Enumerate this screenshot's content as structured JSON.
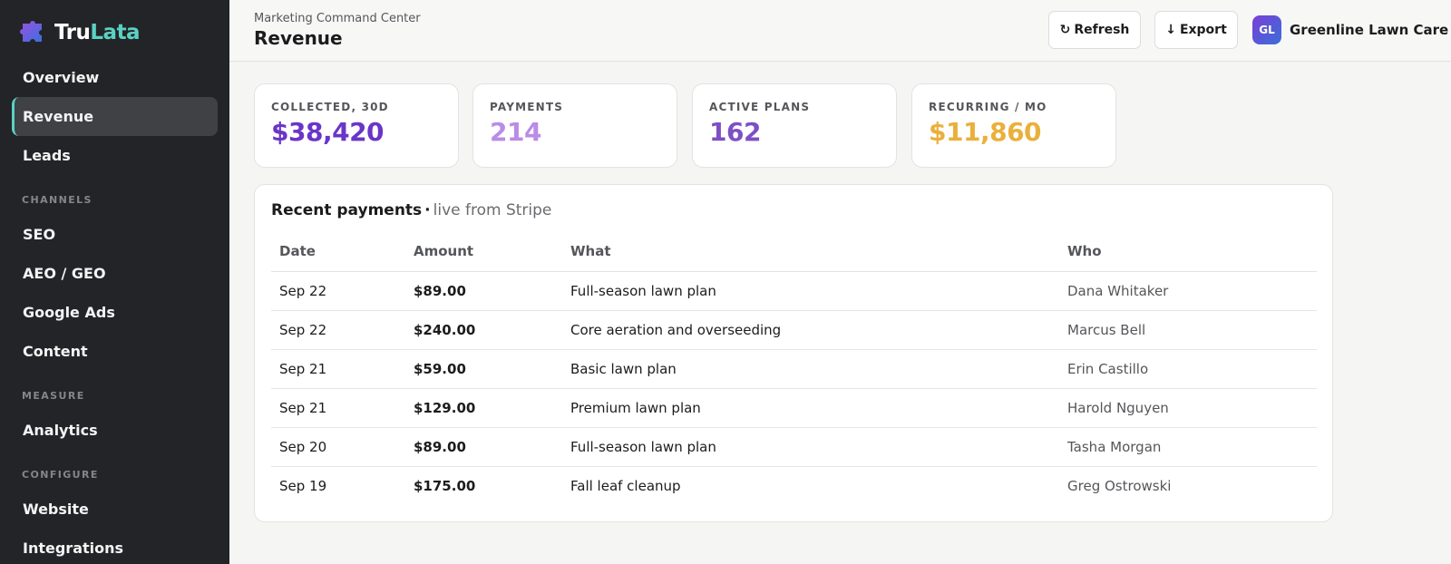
{
  "brand": {
    "name_part1": "Tru",
    "name_part2": "Lata",
    "logo_icon": "puzzle-logo"
  },
  "nav": {
    "items_top": [
      {
        "label": "Overview",
        "active": false
      },
      {
        "label": "Revenue",
        "active": true
      },
      {
        "label": "Leads",
        "active": false
      }
    ],
    "sections": [
      {
        "title": "CHANNELS",
        "items": [
          {
            "label": "SEO"
          },
          {
            "label": "AEO / GEO"
          },
          {
            "label": "Google Ads"
          },
          {
            "label": "Content"
          }
        ]
      },
      {
        "title": "MEASURE",
        "items": [
          {
            "label": "Analytics"
          }
        ]
      },
      {
        "title": "CONFIGURE",
        "items": [
          {
            "label": "Website"
          },
          {
            "label": "Integrations"
          }
        ]
      }
    ]
  },
  "header": {
    "breadcrumb": "Marketing Command Center",
    "title": "Revenue",
    "refresh_label": "Refresh",
    "refresh_icon": "refresh-icon",
    "export_label": "Export",
    "export_icon": "arrow-down-icon",
    "account": {
      "initials": "GL",
      "name": "Greenline Lawn Care"
    }
  },
  "kpis": [
    {
      "label": "COLLECTED, 30D",
      "value": "$38,420",
      "color": "#6a35c8"
    },
    {
      "label": "PAYMENTS",
      "value": "214",
      "color": "#b98ce6"
    },
    {
      "label": "ACTIVE PLANS",
      "value": "162",
      "color": "#7d4fc4"
    },
    {
      "label": "RECURRING / MO",
      "value": "$11,860",
      "color": "#eab03c"
    }
  ],
  "payments": {
    "title": "Recent payments",
    "separator": "·",
    "subtitle": "live from Stripe",
    "columns": [
      "Date",
      "Amount",
      "What",
      "Who"
    ],
    "rows": [
      {
        "date": "Sep 22",
        "amount": "$89.00",
        "what": "Full-season lawn plan",
        "who": "Dana Whitaker"
      },
      {
        "date": "Sep 22",
        "amount": "$240.00",
        "what": "Core aeration and overseeding",
        "who": "Marcus Bell"
      },
      {
        "date": "Sep 21",
        "amount": "$59.00",
        "what": "Basic lawn plan",
        "who": "Erin Castillo"
      },
      {
        "date": "Sep 21",
        "amount": "$129.00",
        "what": "Premium lawn plan",
        "who": "Harold Nguyen"
      },
      {
        "date": "Sep 20",
        "amount": "$89.00",
        "what": "Full-season lawn plan",
        "who": "Tasha Morgan"
      },
      {
        "date": "Sep 19",
        "amount": "$175.00",
        "what": "Fall leaf cleanup",
        "who": "Greg Ostrowski"
      }
    ]
  }
}
